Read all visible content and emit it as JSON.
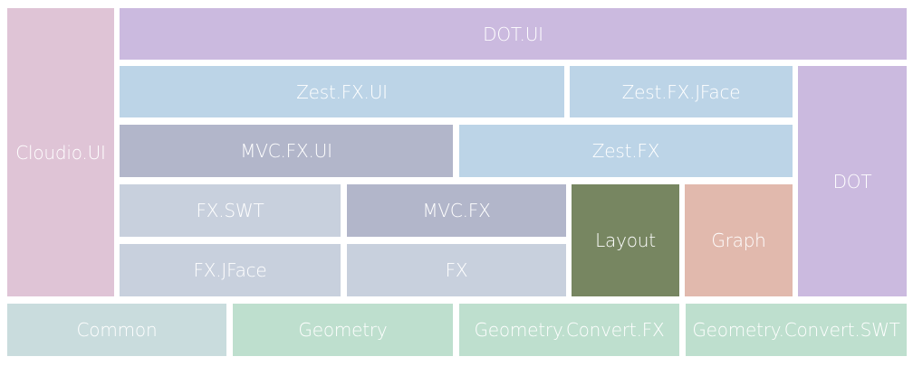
{
  "diagram": {
    "boxes": {
      "cloudio_ui": {
        "label": "Cloudio.UI",
        "color": "#dfc4d6"
      },
      "dot_ui": {
        "label": "DOT.UI",
        "color": "#cbbadf"
      },
      "zest_fx_ui": {
        "label": "Zest.FX.UI",
        "color": "#bcd4e7"
      },
      "zest_fx_jface": {
        "label": "Zest.FX.JFace",
        "color": "#bcd4e7"
      },
      "dot": {
        "label": "DOT",
        "color": "#cbbadf"
      },
      "mvc_fx_ui": {
        "label": "MVC.FX.UI",
        "color": "#b2b6ca"
      },
      "zest_fx": {
        "label": "Zest.FX",
        "color": "#bcd4e7"
      },
      "fx_swt": {
        "label": "FX.SWT",
        "color": "#c8d0dd"
      },
      "mvc_fx": {
        "label": "MVC.FX",
        "color": "#b2b6ca"
      },
      "layout": {
        "label": "Layout",
        "color": "#778661"
      },
      "graph": {
        "label": "Graph",
        "color": "#e1b9ad"
      },
      "fx_jface": {
        "label": "FX.JFace",
        "color": "#c8d0dd"
      },
      "fx": {
        "label": "FX",
        "color": "#c8d0dd"
      },
      "common": {
        "label": "Common",
        "color": "#c9dcdd"
      },
      "geometry": {
        "label": "Geometry",
        "color": "#bedfce"
      },
      "geometry_convert_fx": {
        "label": "Geometry.Convert.FX",
        "color": "#bedfce"
      },
      "geometry_convert_swt": {
        "label": "Geometry.Convert.SWT",
        "color": "#bedfce"
      }
    }
  }
}
